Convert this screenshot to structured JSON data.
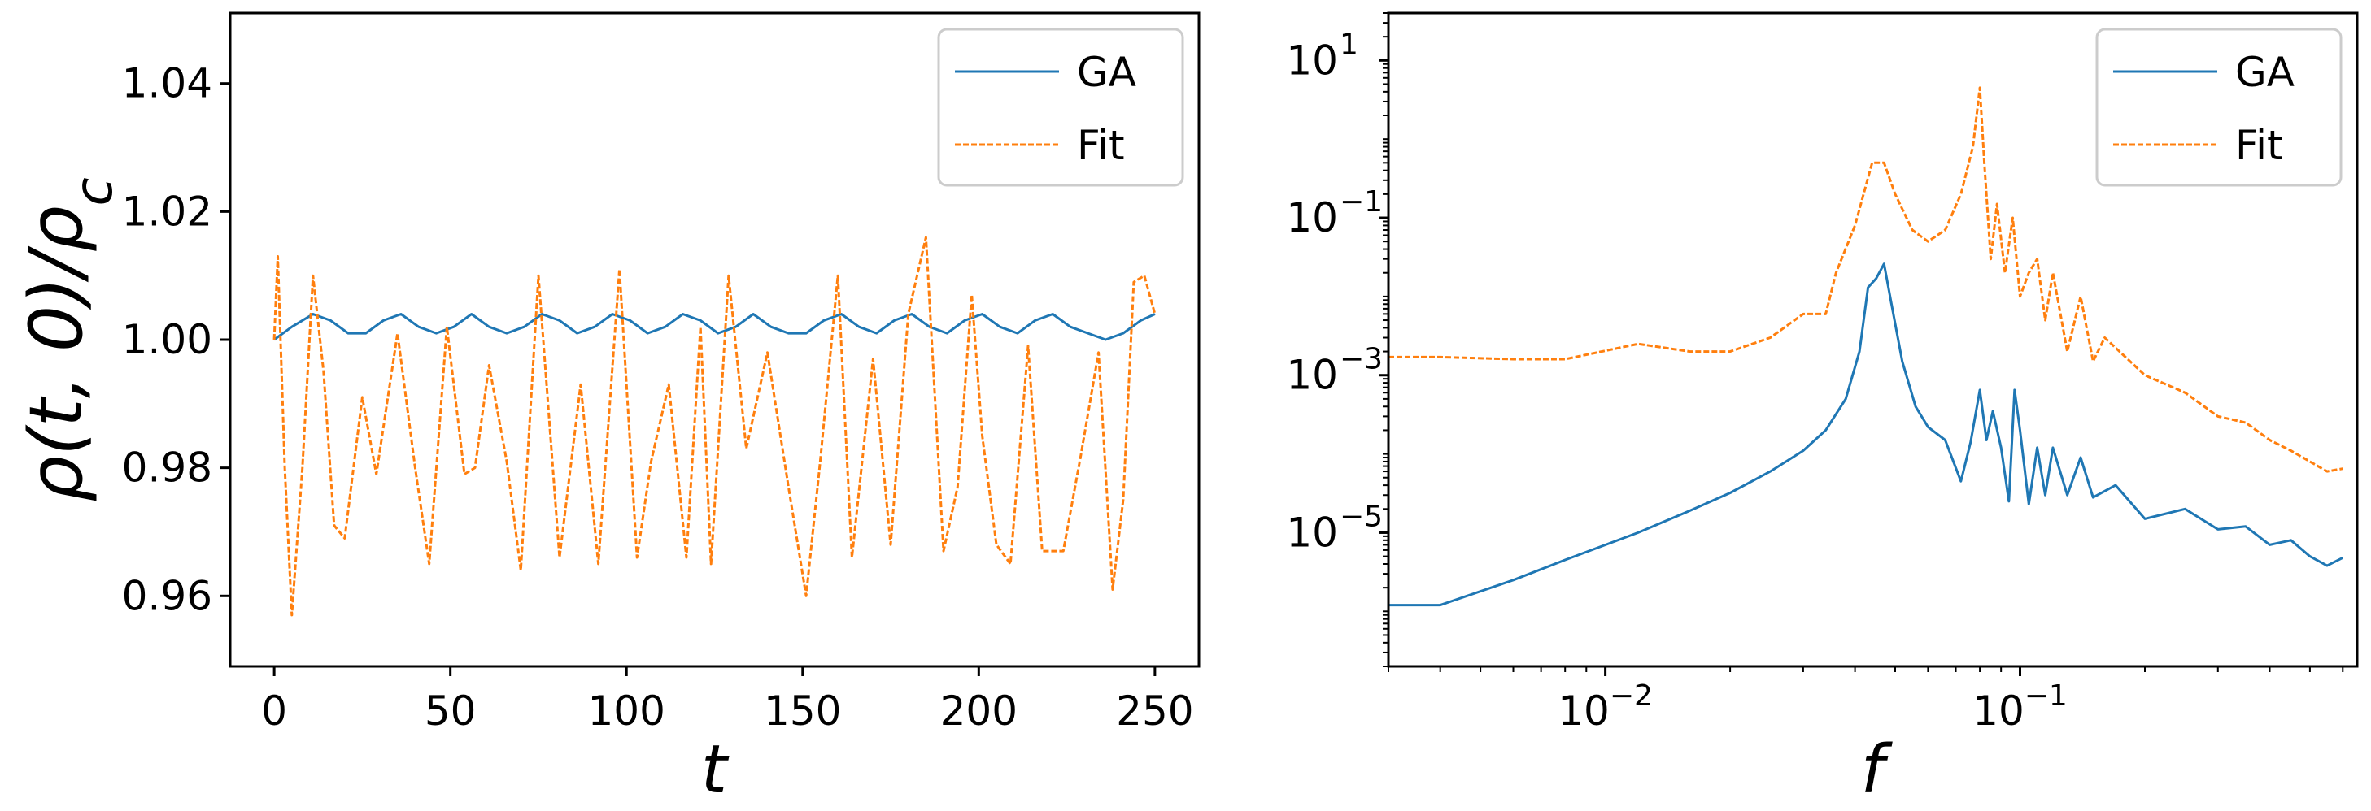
{
  "chart_data": [
    {
      "type": "line",
      "xlabel": "t",
      "ylabel": "ρ(t, 0)/ρ_c",
      "xlim": [
        -12.5,
        262.5
      ],
      "ylim": [
        0.949,
        1.051
      ],
      "xscale": "linear",
      "yscale": "linear",
      "xticks": [
        0,
        50,
        100,
        150,
        200,
        250
      ],
      "xtick_labels": [
        "0",
        "50",
        "100",
        "150",
        "200",
        "250"
      ],
      "yticks": [
        0.96,
        0.98,
        1.0,
        1.02,
        1.04
      ],
      "ytick_labels": [
        "0.96",
        "0.98",
        "1.00",
        "1.02",
        "1.04"
      ],
      "legend_position": "top-right",
      "series": [
        {
          "name": "GA",
          "style": "solid",
          "color": "#1f77b4",
          "x": [
            0,
            5,
            11,
            16,
            21,
            26,
            31,
            36,
            41,
            46,
            51,
            56,
            61,
            66,
            71,
            76,
            81,
            86,
            91,
            96,
            101,
            106,
            111,
            116,
            121,
            126,
            131,
            136,
            141,
            146,
            151,
            156,
            161,
            166,
            171,
            176,
            181,
            186,
            191,
            196,
            201,
            206,
            211,
            216,
            221,
            226,
            231,
            236,
            241,
            246,
            250
          ],
          "y": [
            1.0,
            1.002,
            1.004,
            1.003,
            1.001,
            1.001,
            1.003,
            1.004,
            1.002,
            1.001,
            1.002,
            1.004,
            1.002,
            1.001,
            1.002,
            1.004,
            1.003,
            1.001,
            1.002,
            1.004,
            1.003,
            1.001,
            1.002,
            1.004,
            1.003,
            1.001,
            1.002,
            1.004,
            1.002,
            1.001,
            1.001,
            1.003,
            1.004,
            1.002,
            1.001,
            1.003,
            1.004,
            1.002,
            1.001,
            1.003,
            1.004,
            1.002,
            1.001,
            1.003,
            1.004,
            1.002,
            1.001,
            1.0,
            1.001,
            1.003,
            1.004
          ]
        },
        {
          "name": "Fit",
          "style": "dashed",
          "color": "#ff7f0e",
          "x": [
            0,
            1,
            3,
            5,
            8,
            11,
            14,
            17,
            20,
            25,
            29,
            35,
            40,
            44,
            49,
            54,
            57,
            61,
            66,
            70,
            75,
            81,
            87,
            92,
            98,
            103,
            107,
            112,
            117,
            121,
            124,
            129,
            134,
            140,
            146,
            151,
            155,
            160,
            164,
            170,
            175,
            180,
            185,
            190,
            194,
            198,
            201,
            205,
            209,
            214,
            218,
            224,
            229,
            234,
            238,
            241,
            244,
            247,
            250
          ],
          "y": [
            1.0,
            1.013,
            0.98,
            0.957,
            0.98,
            1.01,
            0.995,
            0.971,
            0.969,
            0.991,
            0.979,
            1.001,
            0.98,
            0.965,
            1.002,
            0.979,
            0.98,
            0.996,
            0.981,
            0.964,
            1.01,
            0.966,
            0.993,
            0.965,
            1.011,
            0.966,
            0.981,
            0.993,
            0.966,
            1.002,
            0.965,
            1.01,
            0.983,
            0.998,
            0.977,
            0.96,
            0.981,
            1.01,
            0.966,
            0.997,
            0.968,
            1.004,
            1.016,
            0.967,
            0.977,
            1.007,
            0.985,
            0.968,
            0.965,
            0.999,
            0.967,
            0.967,
            0.982,
            0.998,
            0.961,
            0.975,
            1.009,
            1.01,
            1.004
          ]
        }
      ],
      "legend": [
        "GA",
        "Fit"
      ]
    },
    {
      "type": "line",
      "xlabel": "f",
      "ylabel": "",
      "xscale": "log",
      "yscale": "log",
      "xlim": [
        0.003,
        0.65
      ],
      "ylim": [
        2e-07,
        40
      ],
      "xticks": [
        0.01,
        0.1
      ],
      "xtick_labels": [
        "10",
        "10"
      ],
      "xtick_exponents": [
        "−2",
        "−1"
      ],
      "yticks": [
        1e-05,
        0.001,
        0.1,
        10
      ],
      "ytick_labels": [
        "10",
        "10",
        "10",
        "10"
      ],
      "ytick_exponents": [
        "−5",
        "−3",
        "−1",
        "1"
      ],
      "legend_position": "top-right",
      "series": [
        {
          "name": "GA",
          "style": "solid",
          "color": "#1f77b4",
          "x": [
            0.003,
            0.004,
            0.006,
            0.008,
            0.012,
            0.016,
            0.02,
            0.025,
            0.03,
            0.034,
            0.038,
            0.041,
            0.043,
            0.045,
            0.047,
            0.049,
            0.052,
            0.056,
            0.06,
            0.066,
            0.072,
            0.076,
            0.08,
            0.083,
            0.086,
            0.09,
            0.094,
            0.097,
            0.1,
            0.105,
            0.11,
            0.115,
            0.12,
            0.13,
            0.14,
            0.15,
            0.17,
            0.2,
            0.25,
            0.3,
            0.35,
            0.4,
            0.45,
            0.5,
            0.55,
            0.6
          ],
          "y": [
            1.2e-06,
            1.2e-06,
            2.5e-06,
            4.5e-06,
            1e-05,
            1.9e-05,
            3.2e-05,
            6e-05,
            0.00011,
            0.0002,
            0.0005,
            0.002,
            0.013,
            0.017,
            0.026,
            0.008,
            0.0015,
            0.0004,
            0.00022,
            0.00015,
            4.5e-05,
            0.00014,
            0.00065,
            0.00015,
            0.00035,
            0.00012,
            2.5e-05,
            0.00065,
            0.0002,
            2.3e-05,
            0.00012,
            3e-05,
            0.00012,
            3e-05,
            9e-05,
            2.8e-05,
            4e-05,
            1.5e-05,
            2e-05,
            1.1e-05,
            1.2e-05,
            7e-06,
            8e-06,
            5e-06,
            3.8e-06,
            4.8e-06
          ]
        },
        {
          "name": "Fit",
          "style": "dashed",
          "color": "#ff7f0e",
          "x": [
            0.003,
            0.004,
            0.006,
            0.008,
            0.012,
            0.016,
            0.02,
            0.025,
            0.03,
            0.034,
            0.036,
            0.04,
            0.044,
            0.047,
            0.05,
            0.055,
            0.06,
            0.066,
            0.072,
            0.077,
            0.08,
            0.082,
            0.085,
            0.088,
            0.092,
            0.096,
            0.1,
            0.105,
            0.11,
            0.115,
            0.12,
            0.13,
            0.14,
            0.15,
            0.16,
            0.2,
            0.25,
            0.3,
            0.35,
            0.4,
            0.45,
            0.5,
            0.55,
            0.6
          ],
          "y": [
            0.0017,
            0.0017,
            0.0016,
            0.0016,
            0.0025,
            0.002,
            0.002,
            0.003,
            0.006,
            0.006,
            0.02,
            0.08,
            0.5,
            0.5,
            0.2,
            0.07,
            0.05,
            0.07,
            0.2,
            0.8,
            4.5,
            0.5,
            0.03,
            0.15,
            0.02,
            0.1,
            0.01,
            0.02,
            0.03,
            0.005,
            0.02,
            0.002,
            0.01,
            0.0015,
            0.003,
            0.001,
            0.0006,
            0.0003,
            0.00025,
            0.00015,
            0.00011,
            8e-05,
            6e-05,
            6.5e-05
          ]
        }
      ],
      "legend": [
        "GA",
        "Fit"
      ]
    }
  ]
}
